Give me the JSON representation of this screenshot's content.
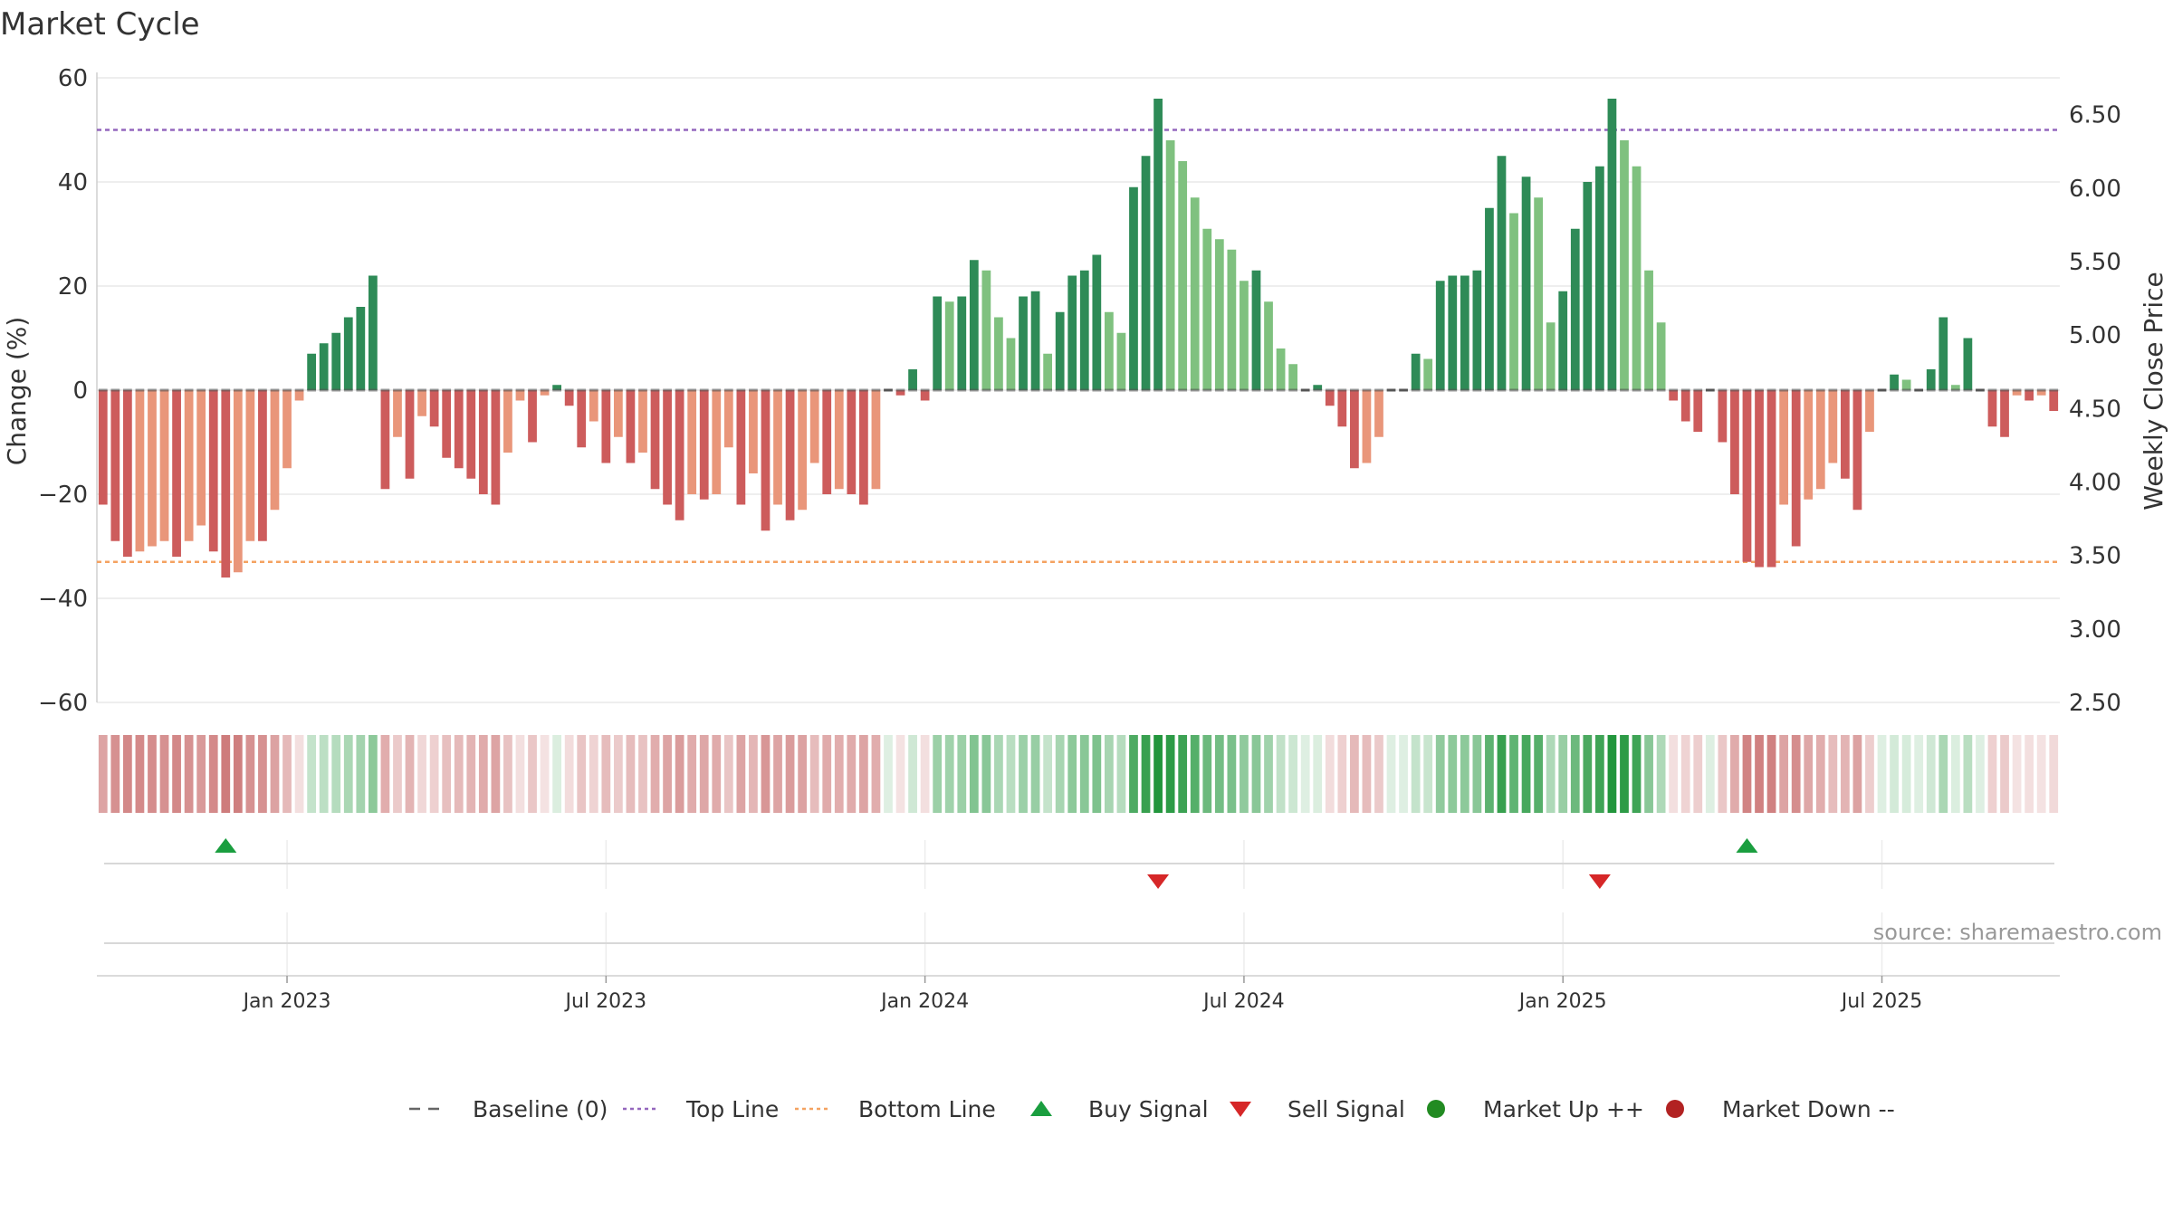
{
  "title": "Market Cycle",
  "source": "source: sharemaestro.com",
  "colors": {
    "dark_green": "#2e8b57",
    "light_green": "#7fc17f",
    "dark_red": "#cd5c5c",
    "light_red": "#e9967a",
    "top_line": "#9467bd",
    "bottom_line": "#f4a261",
    "buy": "#1a9e3f",
    "sell": "#d62728",
    "market_up": "#228b22",
    "market_down": "#b22222"
  },
  "chart_data": {
    "type": "bar",
    "xlabel": "",
    "ylabel": "Change (%)",
    "y2label": "Weekly Close Price",
    "ylim": [
      -60,
      60
    ],
    "y2lim": [
      2.5,
      6.75
    ],
    "yticks": [
      "60",
      "40",
      "20",
      "0",
      "−20",
      "−40",
      "−60"
    ],
    "y2ticks": [
      "6.50",
      "6.00",
      "5.50",
      "5.00",
      "4.50",
      "4.00",
      "3.50",
      "3.00",
      "2.50"
    ],
    "xticks": [
      "Jan 2023",
      "Jul 2023",
      "Jan 2024",
      "Jul 2024",
      "Jan 2025",
      "Jul 2025"
    ],
    "xtick_weeks": [
      15,
      41,
      67,
      93,
      119,
      145
    ],
    "top_line": 50,
    "bottom_line": -33,
    "baseline": 0,
    "values": [
      -22,
      -29,
      -32,
      -31,
      -30,
      -29,
      -32,
      -29,
      -26,
      -31,
      -36,
      -35,
      -29,
      -29,
      -23,
      -15,
      -2,
      7,
      9,
      11,
      14,
      16,
      22,
      -19,
      -9,
      -17,
      -5,
      -7,
      -13,
      -15,
      -17,
      -20,
      -22,
      -12,
      -2,
      -10,
      -1,
      1,
      -3,
      -11,
      -6,
      -14,
      -9,
      -14,
      -12,
      -19,
      -22,
      -25,
      -20,
      -21,
      -20,
      -11,
      -22,
      -16,
      -27,
      -22,
      -25,
      -23,
      -14,
      -20,
      -19,
      -20,
      -22,
      -19,
      0,
      -1,
      4,
      -2,
      18,
      17,
      18,
      25,
      23,
      14,
      10,
      18,
      19,
      7,
      15,
      22,
      23,
      26,
      15,
      11,
      39,
      45,
      56,
      48,
      44,
      37,
      31,
      29,
      27,
      21,
      23,
      17,
      8,
      5,
      0,
      1,
      -3,
      -7,
      -15,
      -14,
      -9,
      0,
      0,
      7,
      6,
      21,
      22,
      22,
      23,
      35,
      45,
      34,
      41,
      37,
      13,
      19,
      31,
      40,
      43,
      56,
      48,
      43,
      23,
      13,
      -2,
      -6,
      -8,
      0,
      -10,
      -20,
      -33,
      -34,
      -34,
      -22,
      -30,
      -21,
      -19,
      -14,
      -17,
      -23,
      -8,
      0,
      3,
      2,
      0,
      4,
      14,
      1,
      10,
      0,
      -7,
      -9,
      -1,
      -2,
      -1,
      -4
    ],
    "signals": [
      {
        "type": "buy",
        "week": 10
      },
      {
        "type": "sell",
        "week": 86
      },
      {
        "type": "sell",
        "week": 122
      },
      {
        "type": "buy",
        "week": 134
      }
    ]
  },
  "legend": [
    {
      "key": "baseline",
      "label": "Baseline (0)"
    },
    {
      "key": "top",
      "label": "Top Line"
    },
    {
      "key": "bottom",
      "label": "Bottom Line"
    },
    {
      "key": "buy",
      "label": "Buy Signal"
    },
    {
      "key": "sell",
      "label": "Sell Signal"
    },
    {
      "key": "up",
      "label": "Market Up ++"
    },
    {
      "key": "down",
      "label": "Market Down --"
    }
  ]
}
